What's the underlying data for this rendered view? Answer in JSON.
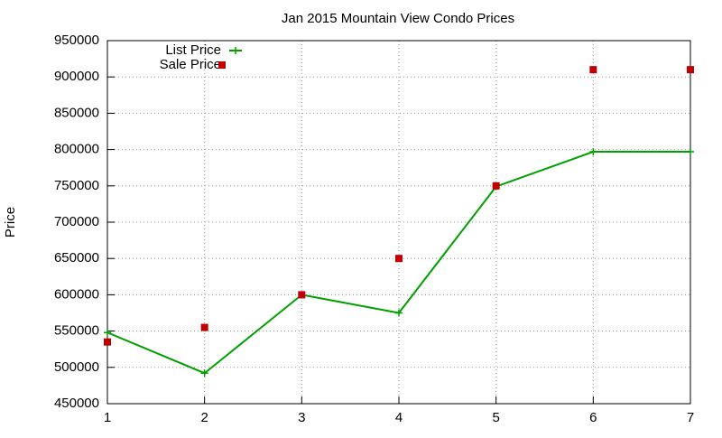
{
  "chart_data": {
    "type": "line",
    "title": "Jan 2015 Mountain View Condo Prices",
    "y_label": "Price",
    "x": [
      1,
      2,
      3,
      4,
      5,
      6,
      7
    ],
    "series": [
      {
        "name": "List Price",
        "color": "#00a000",
        "style": "linespoints",
        "values": [
          548000,
          492000,
          600000,
          575000,
          749000,
          797000,
          797000
        ]
      },
      {
        "name": "Sale Price",
        "color": "#c00000",
        "style": "points",
        "values": [
          535000,
          555000,
          600000,
          650000,
          750000,
          910000,
          910000
        ]
      }
    ],
    "xlim": [
      1,
      7
    ],
    "xticks": [
      1,
      2,
      3,
      4,
      5,
      6,
      7
    ],
    "ylim": [
      450000,
      950000
    ],
    "yticks": [
      450000,
      500000,
      550000,
      600000,
      650000,
      700000,
      750000,
      800000,
      850000,
      900000,
      950000
    ],
    "grid": true,
    "legend": "top-left"
  }
}
